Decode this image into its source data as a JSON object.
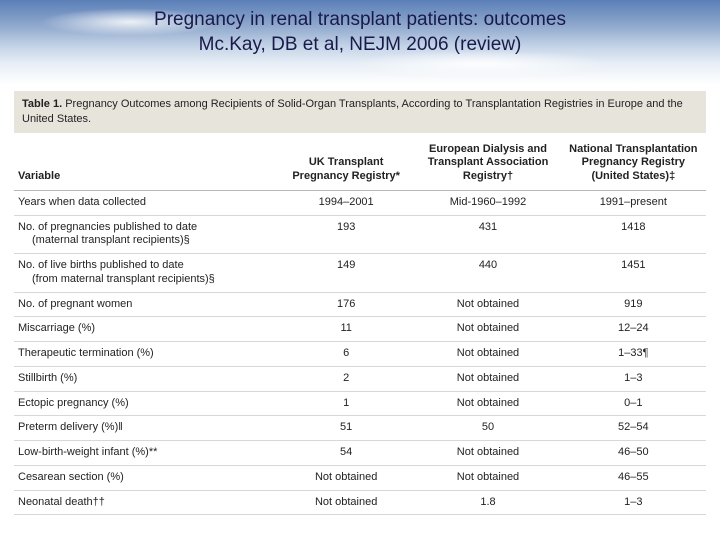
{
  "title": {
    "line1": "Pregnancy in renal transplant patients: outcomes",
    "line2": "Mc.Kay, DB et al, NEJM 2006 (review)"
  },
  "caption": {
    "lead": "Table 1.",
    "text": "Pregnancy Outcomes among Recipients of Solid-Organ Transplants, According to Transplantation Registries in Europe and the United States."
  },
  "columns": {
    "variable": "Variable",
    "c1": "UK Transplant Pregnancy Registry*",
    "c2": "European Dialysis and Transplant Association Registry†",
    "c3": "National Transplantation Pregnancy Registry (United States)‡"
  },
  "rows": [
    {
      "var": "Years when data collected",
      "sub": "",
      "v1": "1994–2001",
      "v2": "Mid-1960–1992",
      "v3": "1991–present"
    },
    {
      "var": "No. of pregnancies published to date",
      "sub": "(maternal transplant recipients)§",
      "v1": "193",
      "v2": "431",
      "v3": "1418"
    },
    {
      "var": "No. of live births published to date",
      "sub": "(from maternal transplant recipients)§",
      "v1": "149",
      "v2": "440",
      "v3": "1451"
    },
    {
      "var": "No. of pregnant women",
      "sub": "",
      "v1": "176",
      "v2": "Not obtained",
      "v3": "919"
    },
    {
      "var": "Miscarriage (%)",
      "sub": "",
      "v1": "11",
      "v2": "Not obtained",
      "v3": "12–24"
    },
    {
      "var": "Therapeutic termination (%)",
      "sub": "",
      "v1": "6",
      "v2": "Not obtained",
      "v3": "1–33¶"
    },
    {
      "var": "Stillbirth (%)",
      "sub": "",
      "v1": "2",
      "v2": "Not obtained",
      "v3": "1–3"
    },
    {
      "var": "Ectopic pregnancy (%)",
      "sub": "",
      "v1": "1",
      "v2": "Not obtained",
      "v3": "0–1"
    },
    {
      "var": "Preterm delivery (%)‖",
      "sub": "",
      "v1": "51",
      "v2": "50",
      "v3": "52–54"
    },
    {
      "var": "Low-birth-weight infant (%)**",
      "sub": "",
      "v1": "54",
      "v2": "Not obtained",
      "v3": "46–50"
    },
    {
      "var": "Cesarean section (%)",
      "sub": "",
      "v1": "Not obtained",
      "v2": "Not obtained",
      "v3": "46–55"
    },
    {
      "var": "Neonatal death††",
      "sub": "",
      "v1": "Not obtained",
      "v2": "1.8",
      "v3": "1–3"
    }
  ],
  "style": {
    "caption_bg": "#e7e4dc",
    "row_border": "#d8d8d8",
    "header_border": "#b8b8b8",
    "title_color": "#1a1a4a",
    "font_size_title": 19,
    "font_size_table": 11
  }
}
